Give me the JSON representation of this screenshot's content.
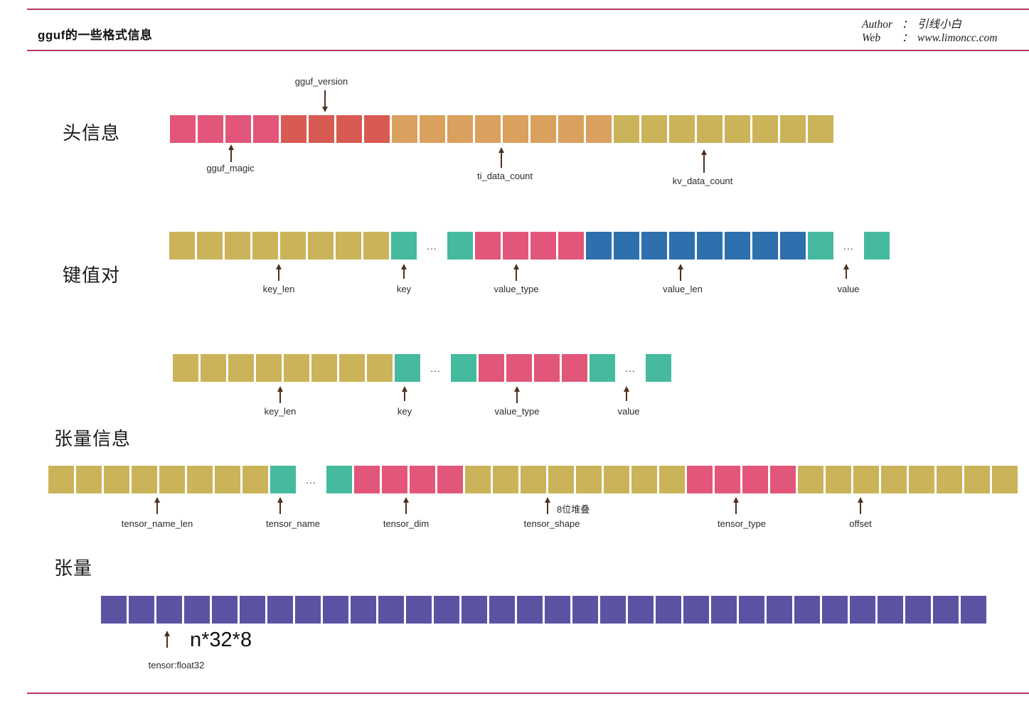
{
  "page": {
    "title": "gguf的一些格式信息",
    "author_label": "Author",
    "author_colon": "：",
    "author_value": "引线小白",
    "web_label": "Web",
    "web_colon": "：",
    "web_value": "www.limoncc.com"
  },
  "sections": [
    {
      "label": "头信息"
    },
    {
      "label": "键值对"
    },
    {
      "label": "张量信息"
    },
    {
      "label": "张量"
    }
  ],
  "colors": {
    "rule": "#b73a5c",
    "arrow": "#503020",
    "pink": "#e2567a",
    "red": "#d75b52",
    "orange": "#d9a05e",
    "khaki": "#cbb35a",
    "teal": "#45ba9e",
    "blue": "#2e6fad",
    "purple": "#5c52a2"
  },
  "ellipsis": "...",
  "rows": {
    "header_row": {
      "segments": [
        {
          "type": "cells",
          "count": 4,
          "color": "pink"
        },
        {
          "type": "cells",
          "count": 4,
          "color": "red"
        },
        {
          "type": "cells",
          "count": 8,
          "color": "orange"
        },
        {
          "type": "cells",
          "count": 8,
          "color": "khaki"
        }
      ]
    },
    "kv_row_1": {
      "segments": [
        {
          "type": "cells",
          "count": 8,
          "color": "khaki"
        },
        {
          "type": "cells",
          "count": 1,
          "color": "teal"
        },
        {
          "type": "ellipsis"
        },
        {
          "type": "cells",
          "count": 1,
          "color": "teal"
        },
        {
          "type": "cells",
          "count": 4,
          "color": "pink"
        },
        {
          "type": "cells",
          "count": 8,
          "color": "blue"
        },
        {
          "type": "cells",
          "count": 1,
          "color": "teal"
        },
        {
          "type": "ellipsis"
        },
        {
          "type": "cells",
          "count": 1,
          "color": "teal"
        }
      ]
    },
    "kv_row_2": {
      "segments": [
        {
          "type": "cells",
          "count": 8,
          "color": "khaki"
        },
        {
          "type": "cells",
          "count": 1,
          "color": "teal"
        },
        {
          "type": "ellipsis"
        },
        {
          "type": "cells",
          "count": 1,
          "color": "teal"
        },
        {
          "type": "cells",
          "count": 4,
          "color": "pink"
        },
        {
          "type": "cells",
          "count": 1,
          "color": "teal"
        },
        {
          "type": "ellipsis"
        },
        {
          "type": "cells",
          "count": 1,
          "color": "teal"
        }
      ]
    },
    "tensor_info_row": {
      "segments": [
        {
          "type": "cells",
          "count": 8,
          "color": "khaki"
        },
        {
          "type": "cells",
          "count": 1,
          "color": "teal"
        },
        {
          "type": "ellipsis"
        },
        {
          "type": "cells",
          "count": 1,
          "color": "teal"
        },
        {
          "type": "cells",
          "count": 4,
          "color": "pink"
        },
        {
          "type": "cells",
          "count": 8,
          "color": "khaki"
        },
        {
          "type": "cells",
          "count": 4,
          "color": "pink"
        },
        {
          "type": "cells",
          "count": 8,
          "color": "khaki"
        }
      ]
    },
    "tensor_row": {
      "segments": [
        {
          "type": "cells",
          "count": 32,
          "color": "purple"
        }
      ]
    }
  },
  "annotations": {
    "gguf_version": "gguf_version",
    "gguf_magic": "gguf_magic",
    "ti_data_count": "ti_data_count",
    "kv_data_count": "kv_data_count",
    "key_len": "key_len",
    "key": "key",
    "value_type": "value_type",
    "value_len": "value_len",
    "value": "value",
    "tensor_name_len": "tensor_name_len",
    "tensor_name": "tensor_name",
    "tensor_dim": "tensor_dim",
    "tensor_shape": "tensor_shape",
    "stack_note": "8位堆叠",
    "tensor_type": "tensor_type",
    "offset": "offset",
    "tensor_float32": "tensor:float32",
    "bits_formula": "n*32*8"
  }
}
